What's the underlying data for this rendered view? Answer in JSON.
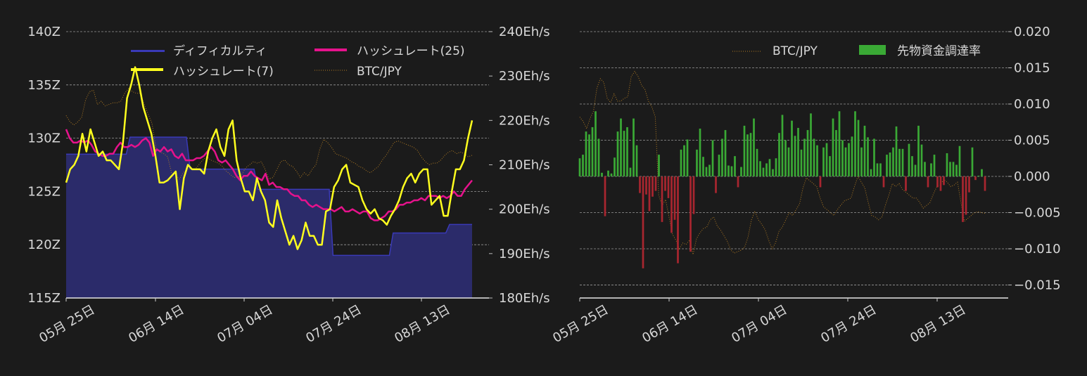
{
  "chart_data": [
    {
      "type": "line",
      "panel": "left",
      "x_ticks": [
        "05月 25日",
        "06月 14日",
        "07月 04日",
        "07月 24日",
        "08月 13日"
      ],
      "y_left_ticks": [
        "140Z",
        "135Z",
        "130Z",
        "125Z",
        "120Z",
        "115Z"
      ],
      "y_left_range": [
        115,
        140
      ],
      "y_right_ticks": [
        "240Eh/s",
        "230Eh/s",
        "220Eh/s",
        "210Eh/s",
        "200Eh/s",
        "190Eh/s",
        "180Eh/s"
      ],
      "y_right_range": [
        180,
        240
      ],
      "grid": "horizontal dashed",
      "legend_position": "top",
      "series": [
        {
          "name": "ディフィカルティ",
          "kind": "area",
          "axis": "left",
          "color": "#3a3ab8",
          "fill": "#2b2b6a",
          "values": [
            128.5,
            128.5,
            128.5,
            128.5,
            128.5,
            128.5,
            128.5,
            128.5,
            128.5,
            128.5,
            128.5,
            128.5,
            128.5,
            128.5,
            128.5,
            128.5,
            128.5,
            130.1,
            130.1,
            130.1,
            130.1,
            130.1,
            130.1,
            130.1,
            130.1,
            130.1,
            130.1,
            130.1,
            130.1,
            130.1,
            130.1,
            130.1,
            130.1,
            127.1,
            127.1,
            127.1,
            127.1,
            127.1,
            127.1,
            127.1,
            127.1,
            127.1,
            127.1,
            127.1,
            127.1,
            127.1,
            127.1,
            127.1,
            127.1,
            127.1,
            127.1,
            125.2,
            125.2,
            125.2,
            125.2,
            125.2,
            125.2,
            125.2,
            125.2,
            125.2,
            125.2,
            125.2,
            125.2,
            125.2,
            125.2,
            125.2,
            125.2,
            125.2,
            125.2,
            125.2,
            125.2,
            119.0,
            119.0,
            119.0,
            119.0,
            119.0,
            119.0,
            119.0,
            119.0,
            119.0,
            119.0,
            119.0,
            119.0,
            119.0,
            119.0,
            119.0,
            119.0,
            121.1,
            121.1,
            121.1,
            121.1,
            121.1,
            121.1,
            121.1,
            121.1,
            121.1,
            121.1,
            121.1,
            121.1,
            121.1,
            121.1,
            121.1,
            121.9,
            121.9,
            121.9,
            121.9,
            121.9,
            121.9,
            121.9
          ]
        },
        {
          "name": "ハッシュレート(25)",
          "kind": "line",
          "axis": "right",
          "color": "#e6128c",
          "values": [
            218,
            216,
            215,
            215,
            215.5,
            215,
            215.5,
            214.5,
            213,
            212.5,
            212,
            212,
            212.5,
            212.5,
            214,
            215,
            214,
            214,
            214.5,
            214,
            214.5,
            215.5,
            216,
            215,
            212,
            213.5,
            213,
            214,
            213,
            213.5,
            212,
            211.5,
            212.5,
            211,
            211,
            211,
            211.5,
            211.5,
            212,
            213,
            214,
            213,
            211,
            210.5,
            211,
            210,
            209,
            207.5,
            206.5,
            207.5,
            207.5,
            208.5,
            207.5,
            207,
            206.5,
            208,
            205.5,
            206,
            205,
            205,
            204.5,
            204.5,
            203.5,
            203,
            203,
            202,
            202,
            201,
            200.5,
            201,
            200.5,
            200,
            200,
            200,
            199.5,
            200,
            200.5,
            199.5,
            199.5,
            200,
            199.5,
            199,
            199.5,
            199.5,
            198,
            197.5,
            197.5,
            198,
            198.5,
            199.5,
            199.5,
            200,
            201,
            201,
            201.5,
            201.5,
            202,
            202,
            202.5,
            202,
            203,
            203,
            203,
            202.5,
            203,
            202.5,
            203,
            204,
            203,
            203,
            204.5,
            205.5,
            206.5
          ]
        },
        {
          "name": "ハッシュレート(7)",
          "kind": "line",
          "axis": "right",
          "color": "#ffff1e",
          "values": [
            206,
            209,
            210,
            212,
            217,
            213,
            218,
            215,
            212,
            213,
            211,
            211,
            210,
            209,
            215,
            225,
            228,
            232,
            228,
            223,
            220,
            217,
            212,
            206,
            206,
            206.5,
            207.5,
            208.5,
            200,
            207,
            210,
            209,
            209,
            209,
            208,
            213,
            216,
            218,
            214,
            212,
            218,
            220,
            211,
            207,
            204,
            204,
            202,
            207,
            204,
            202,
            197,
            196,
            202,
            198,
            195,
            192,
            194,
            191,
            193,
            197,
            194,
            194,
            192,
            192,
            199.5,
            200,
            205,
            206.5,
            209,
            210,
            206,
            205.5,
            205,
            202,
            200,
            199,
            200,
            198,
            197.5,
            196.5,
            198.5,
            200,
            202,
            205,
            207,
            208,
            206,
            208,
            209,
            209,
            201,
            202,
            203,
            198.5,
            198.5,
            204,
            209,
            209,
            211,
            216,
            220
          ]
        },
        {
          "name": "BTC/JPY",
          "kind": "dotted-line",
          "axis": "hidden",
          "color": "#b07a22",
          "values": [
            7.4,
            6.6,
            6.2,
            6.6,
            7.2,
            9.4,
            10.4,
            10.6,
            8.8,
            9.2,
            8.6,
            8.8,
            9.0,
            9.0,
            9.2,
            10.2,
            10.8,
            10.4,
            10.2,
            10.2,
            8.8,
            7.6,
            6.4,
            3.4,
            2.8,
            2.6,
            2.2,
            0.2,
            0.0,
            -0.6,
            0.2,
            0.6,
            0.8,
            0.6,
            1.2,
            1.8,
            2.2,
            1.8,
            1.6,
            1.4,
            1.0,
            0.4,
            0.0,
            -0.4,
            -0.4,
            0.0,
            0.8,
            1.2,
            1.6,
            1.4,
            1.6,
            0.6,
            -0.6,
            -0.4,
            0.6,
            1.6,
            1.8,
            1.2,
            1.0,
            0.4,
            -0.4,
            0.2,
            -0.2,
            0.6,
            1.2,
            3.2,
            4.4,
            4.0,
            3.4,
            2.6,
            2.4,
            2.2,
            2.0,
            1.6,
            1.4,
            1.0,
            0.8,
            0.4,
            0.2,
            0.6,
            1.0,
            1.8,
            2.4,
            3.2,
            4.0,
            4.2,
            4.0,
            3.8,
            3.6,
            3.4,
            3.0,
            2.2,
            1.6,
            1.2,
            1.4,
            1.4,
            1.8,
            2.4,
            2.8,
            3.0,
            2.6,
            2.8,
            2.6,
            2.2,
            2.4
          ]
        }
      ]
    },
    {
      "type": "bar",
      "panel": "right",
      "x_ticks": [
        "05月 25日",
        "06月 14日",
        "07月 04日",
        "07月 24日",
        "08月 13日"
      ],
      "y_ticks": [
        "0.020",
        "0.015",
        "0.010",
        "0.005",
        "0.000",
        "−0.005",
        "−0.010",
        "−0.015"
      ],
      "ylim": [
        -0.0168,
        0.02
      ],
      "grid": "horizontal dashed",
      "legend_position": "top-right",
      "series": [
        {
          "name": "BTC/JPY",
          "kind": "dotted-line",
          "color": "#b07a22",
          "values": [
            0.0082,
            0.0076,
            0.0066,
            0.008,
            0.009,
            0.0122,
            0.0135,
            0.013,
            0.0108,
            0.0102,
            0.0114,
            0.0104,
            0.0104,
            0.0108,
            0.011,
            0.0138,
            0.0145,
            0.0138,
            0.0126,
            0.012,
            0.0104,
            0.0096,
            0.0082,
            -0.0026,
            -0.004,
            -0.0032,
            -0.0056,
            -0.008,
            -0.0088,
            -0.01,
            -0.0092,
            -0.0094,
            -0.0088,
            -0.0108,
            -0.0086,
            -0.0078,
            -0.0072,
            -0.007,
            -0.006,
            -0.0056,
            -0.0068,
            -0.0074,
            -0.0082,
            -0.009,
            -0.0102,
            -0.0106,
            -0.0104,
            -0.0102,
            -0.0098,
            -0.0084,
            -0.006,
            -0.0048,
            -0.006,
            -0.0066,
            -0.0074,
            -0.0088,
            -0.01,
            -0.0092,
            -0.0076,
            -0.007,
            -0.006,
            -0.005,
            -0.0054,
            -0.0046,
            -0.0038,
            -0.0016,
            -0.0002,
            -0.0006,
            -0.001,
            -0.0014,
            -0.003,
            -0.0042,
            -0.0046,
            -0.005,
            -0.0054,
            -0.0046,
            -0.004,
            -0.0034,
            -0.0032,
            -0.003,
            -0.0014,
            0.0,
            -0.0008,
            -0.0016,
            -0.0036,
            -0.0054,
            -0.0056,
            -0.006,
            -0.0056,
            -0.004,
            -0.0026,
            -0.001,
            -0.0014,
            -0.001,
            -0.0018,
            -0.0022,
            -0.0026,
            -0.003,
            -0.003,
            -0.0036,
            -0.0044,
            -0.004,
            -0.0036,
            -0.0024,
            -0.0014,
            -0.0012,
            -0.0004,
            -0.0008,
            -0.0014,
            -0.0012,
            -0.0008,
            -0.0036,
            -0.0062,
            -0.0058,
            -0.0054,
            -0.005,
            -0.0049,
            -0.005,
            -0.0051
          ]
        },
        {
          "name": "先物資金調達率",
          "kind": "bar",
          "color_positive": "#3aa935",
          "color_negative": "#a8262f",
          "values": [
            0.0025,
            0.003,
            0.0062,
            0.0058,
            0.0068,
            0.009,
            0.0052,
            0.0005,
            -0.0055,
            0.0008,
            0.0004,
            0.0026,
            0.0062,
            0.008,
            0.0063,
            0.0068,
            0.0012,
            0.008,
            0.0043,
            -0.0023,
            -0.0127,
            -0.0025,
            -0.0048,
            -0.0028,
            -0.002,
            0.003,
            -0.0063,
            -0.002,
            -0.003,
            -0.0078,
            -0.006,
            -0.012,
            0.0037,
            0.0043,
            0.0051,
            -0.0104,
            -0.0052,
            0.0037,
            0.0066,
            0.0027,
            0.0013,
            0.0016,
            0.005,
            -0.0023,
            0.003,
            0.0052,
            0.0064,
            0.0015,
            0.0014,
            0.0028,
            -0.0015,
            0.0013,
            0.007,
            0.0058,
            0.006,
            0.008,
            0.0038,
            0.0021,
            0.0012,
            0.0018,
            0.0024,
            0.001,
            0.0025,
            0.006,
            0.0085,
            0.005,
            0.004,
            0.0077,
            0.0056,
            0.0067,
            0.0037,
            0.0052,
            0.0064,
            0.0087,
            0.0052,
            0.0043,
            -0.0015,
            0.004,
            0.0046,
            0.0028,
            0.008,
            0.0064,
            0.009,
            0.005,
            0.004,
            0.0046,
            0.0055,
            0.009,
            0.0078,
            0.004,
            0.007,
            0.0054,
            0.001,
            0.0052,
            0.0018,
            0.0018,
            -0.0015,
            0.003,
            0.0033,
            0.004,
            0.0069,
            0.0038,
            0.0038,
            -0.002,
            0.0045,
            0.0028,
            0.0016,
            0.007,
            0.0044,
            0.002,
            -0.0015,
            0.0018,
            0.003,
            -0.0015,
            -0.002,
            -0.0012,
            0.0032,
            0.002,
            0.002,
            0.0016,
            0.0042,
            -0.0063,
            -0.0053,
            -0.0022,
            0.004,
            -0.0005,
            0.0001,
            0.001,
            -0.002
          ]
        }
      ]
    }
  ]
}
